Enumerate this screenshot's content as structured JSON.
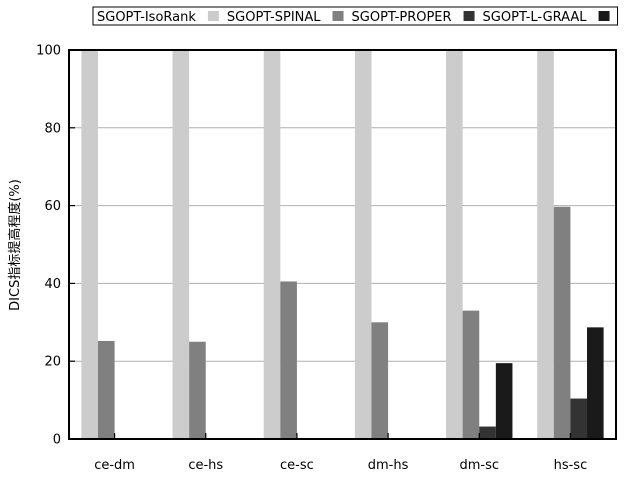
{
  "chart_data": {
    "type": "bar",
    "ylabel": "DICS指标提高程度(%)",
    "ylim": [
      0,
      100
    ],
    "yticks": [
      0,
      20,
      40,
      60,
      80,
      100
    ],
    "grid": true,
    "legend_position": "top",
    "categories": [
      "ce-dm",
      "ce-hs",
      "ce-sc",
      "dm-hs",
      "dm-sc",
      "hs-sc"
    ],
    "series": [
      {
        "name": "SGOPT-IsoRank",
        "color": "#cccccc",
        "values": [
          100,
          100,
          100,
          100,
          100,
          100
        ]
      },
      {
        "name": "SGOPT-SPINAL",
        "color": "#808080",
        "values": [
          25.2,
          25.0,
          40.5,
          30.0,
          33.0,
          59.7
        ]
      },
      {
        "name": "SGOPT-PROPER",
        "color": "#333333",
        "values": [
          0,
          0,
          0,
          0,
          3.2,
          10.4
        ]
      },
      {
        "name": "SGOPT-L-GRAAL",
        "color": "#1a1a1a",
        "values": [
          0,
          0,
          0,
          0,
          19.5,
          28.7
        ]
      }
    ]
  }
}
